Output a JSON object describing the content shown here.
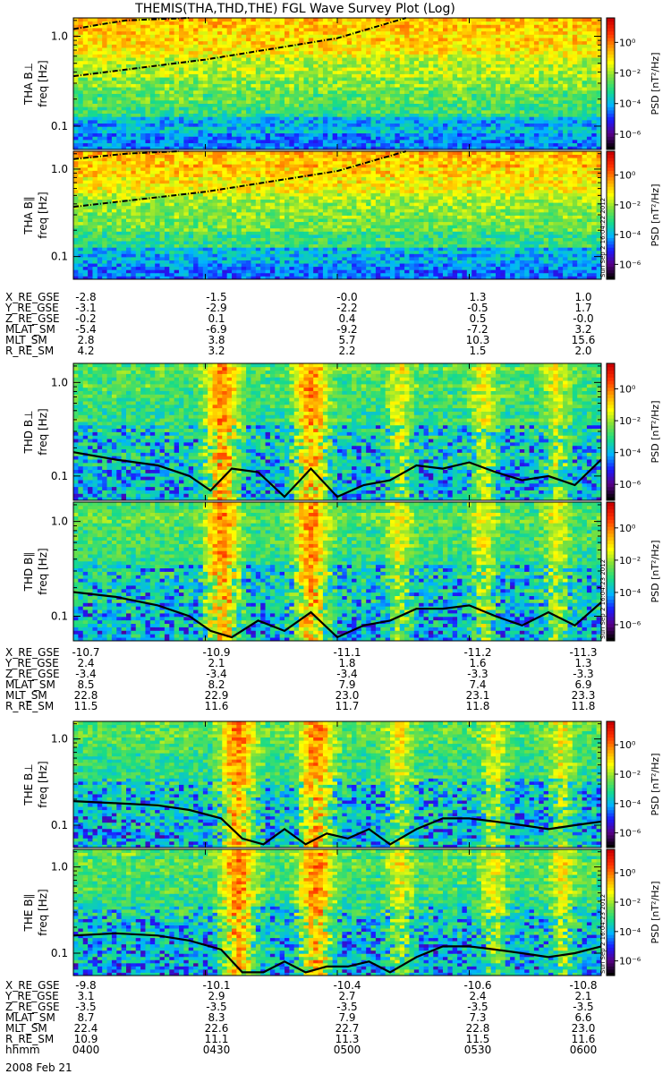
{
  "title": "THEMIS(THA,THD,THE) FGL Wave Survey Plot (Log)",
  "colorbar": {
    "label": "PSD [nT²/Hz]",
    "ticks": [
      "10⁰",
      "10⁻²",
      "10⁻⁴",
      "10⁻⁶"
    ],
    "tick_values": [
      0,
      -2,
      -4,
      -6
    ],
    "range_log": [
      -7,
      1.6
    ],
    "colors": [
      "#000000",
      "#5a0088",
      "#1a1aff",
      "#00b4ff",
      "#18dc88",
      "#7ce03c",
      "#ffff00",
      "#ffa000",
      "#ff3300",
      "#cc0000"
    ]
  },
  "chart_data": [
    {
      "type": "heatmap",
      "panel": "THA B⊥",
      "ylabel": "THA B⊥\nfreq [Hz]",
      "yscale": "log",
      "ylim": [
        0.055,
        1.6
      ],
      "yticks": [
        "1.0",
        "0.1"
      ],
      "overlay_line": {
        "style": "dashed",
        "shape": "rising",
        "x": [
          0.0,
          0.25,
          0.5,
          0.63
        ],
        "y": [
          0.36,
          0.55,
          0.95,
          1.6
        ]
      },
      "overlay_line2": {
        "style": "dashed",
        "shape": "upper-left",
        "x": [
          0.0,
          0.05,
          0.1,
          0.22
        ],
        "y": [
          1.2,
          1.35,
          1.5,
          1.6
        ]
      },
      "dominant_level": "high"
    },
    {
      "type": "heatmap",
      "panel": "THA B∥",
      "ylabel": "THA B∥\nfreq [Hz]",
      "yscale": "log",
      "ylim": [
        0.055,
        1.6
      ],
      "yticks": [
        "1.0",
        "0.1"
      ],
      "overlay_line": {
        "style": "dashed",
        "shape": "rising",
        "x": [
          0.0,
          0.25,
          0.5,
          0.63
        ],
        "y": [
          0.37,
          0.55,
          0.95,
          1.6
        ]
      },
      "overlay_line2": {
        "style": "dashed",
        "shape": "upper-left",
        "x": [
          0.0,
          0.05,
          0.1,
          0.2
        ],
        "y": [
          1.3,
          1.4,
          1.5,
          1.6
        ]
      },
      "stamp": "Sun Sep 2 16:04:22 2012",
      "dominant_level": "high"
    },
    {
      "type": "heatmap",
      "panel": "THD B⊥",
      "ylabel": "THD B⊥\nfreq [Hz]",
      "yscale": "log",
      "ylim": [
        0.055,
        1.6
      ],
      "yticks": [
        "1.0",
        "0.1"
      ],
      "bursts_x": [
        0.28,
        0.45,
        0.62,
        0.78,
        0.92
      ],
      "overlay_line": {
        "style": "solid",
        "shape": "varying",
        "x": [
          0.0,
          0.08,
          0.16,
          0.22,
          0.26,
          0.3,
          0.35,
          0.4,
          0.45,
          0.5,
          0.55,
          0.6,
          0.65,
          0.7,
          0.75,
          0.8,
          0.85,
          0.9,
          0.95,
          1.0
        ],
        "y": [
          0.18,
          0.15,
          0.13,
          0.1,
          0.07,
          0.12,
          0.11,
          0.06,
          0.12,
          0.06,
          0.08,
          0.09,
          0.13,
          0.12,
          0.14,
          0.11,
          0.09,
          0.1,
          0.08,
          0.15
        ]
      },
      "dominant_level": "mid"
    },
    {
      "type": "heatmap",
      "panel": "THD B∥",
      "ylabel": "THD B∥\nfreq [Hz]",
      "yscale": "log",
      "ylim": [
        0.055,
        1.6
      ],
      "yticks": [
        "1.0",
        "0.1"
      ],
      "bursts_x": [
        0.28,
        0.45,
        0.62,
        0.78,
        0.92
      ],
      "overlay_line": {
        "style": "solid",
        "shape": "varying",
        "x": [
          0.0,
          0.08,
          0.16,
          0.22,
          0.26,
          0.3,
          0.35,
          0.4,
          0.45,
          0.5,
          0.55,
          0.6,
          0.65,
          0.7,
          0.75,
          0.8,
          0.85,
          0.9,
          0.95,
          1.0
        ],
        "y": [
          0.18,
          0.16,
          0.13,
          0.1,
          0.07,
          0.06,
          0.09,
          0.07,
          0.11,
          0.06,
          0.08,
          0.09,
          0.12,
          0.12,
          0.13,
          0.1,
          0.08,
          0.11,
          0.08,
          0.14
        ]
      },
      "stamp": "Sun Sep 2 16:04:23 2012",
      "dominant_level": "mid"
    },
    {
      "type": "heatmap",
      "panel": "THE B⊥",
      "ylabel": "THE B⊥\nfreq [Hz]",
      "yscale": "log",
      "ylim": [
        0.055,
        1.6
      ],
      "yticks": [
        "1.0",
        "0.1"
      ],
      "bursts_x": [
        0.31,
        0.46,
        0.62,
        0.8,
        0.93
      ],
      "overlay_line": {
        "style": "solid",
        "shape": "varying",
        "x": [
          0.0,
          0.08,
          0.16,
          0.22,
          0.28,
          0.32,
          0.36,
          0.4,
          0.44,
          0.48,
          0.52,
          0.56,
          0.6,
          0.65,
          0.7,
          0.75,
          0.8,
          0.85,
          0.9,
          0.95,
          1.0
        ],
        "y": [
          0.19,
          0.18,
          0.17,
          0.15,
          0.12,
          0.07,
          0.06,
          0.09,
          0.06,
          0.08,
          0.07,
          0.09,
          0.06,
          0.09,
          0.12,
          0.12,
          0.11,
          0.1,
          0.09,
          0.1,
          0.11
        ]
      },
      "dominant_level": "mid"
    },
    {
      "type": "heatmap",
      "panel": "THE B∥",
      "ylabel": "THE B∥\nfreq [Hz]",
      "yscale": "log",
      "ylim": [
        0.055,
        1.6
      ],
      "yticks": [
        "1.0",
        "0.1"
      ],
      "bursts_x": [
        0.31,
        0.46,
        0.62,
        0.8,
        0.93
      ],
      "overlay_line": {
        "style": "solid",
        "shape": "varying",
        "x": [
          0.0,
          0.08,
          0.16,
          0.22,
          0.28,
          0.32,
          0.36,
          0.4,
          0.44,
          0.48,
          0.52,
          0.56,
          0.6,
          0.65,
          0.7,
          0.75,
          0.8,
          0.85,
          0.9,
          0.95,
          1.0
        ],
        "y": [
          0.16,
          0.17,
          0.16,
          0.14,
          0.11,
          0.06,
          0.06,
          0.08,
          0.06,
          0.07,
          0.07,
          0.08,
          0.06,
          0.09,
          0.12,
          0.12,
          0.11,
          0.1,
          0.09,
          0.1,
          0.12
        ]
      },
      "stamp": "Sun Sep 2 16:04:23 2012",
      "dominant_level": "mid"
    }
  ],
  "ephemeris": [
    {
      "probe": "THA",
      "rows": [
        {
          "label": "X_RE_GSE",
          "values": [
            "-2.8",
            "-1.5",
            "-0.0",
            "1.3",
            "1.0"
          ]
        },
        {
          "label": "Y_RE_GSE",
          "values": [
            "-3.1",
            "-2.9",
            "-2.2",
            "-0.5",
            "1.7"
          ]
        },
        {
          "label": "Z_RE_GSE",
          "values": [
            "-0.2",
            "0.1",
            "0.4",
            "0.5",
            "-0.0"
          ]
        },
        {
          "label": "MLAT_SM",
          "values": [
            "-5.4",
            "-6.9",
            "-9.2",
            "-7.2",
            "3.2"
          ]
        },
        {
          "label": "MLT_SM",
          "values": [
            "2.8",
            "3.8",
            "5.7",
            "10.3",
            "15.6"
          ]
        },
        {
          "label": "R_RE_SM",
          "values": [
            "4.2",
            "3.2",
            "2.2",
            "1.5",
            "2.0"
          ]
        }
      ]
    },
    {
      "probe": "THD",
      "rows": [
        {
          "label": "X_RE_GSE",
          "values": [
            "-10.7",
            "-10.9",
            "-11.1",
            "-11.2",
            "-11.3"
          ]
        },
        {
          "label": "Y_RE_GSE",
          "values": [
            "2.4",
            "2.1",
            "1.8",
            "1.6",
            "1.3"
          ]
        },
        {
          "label": "Z_RE_GSE",
          "values": [
            "-3.4",
            "-3.4",
            "-3.4",
            "-3.3",
            "-3.3"
          ]
        },
        {
          "label": "MLAT_SM",
          "values": [
            "8.5",
            "8.2",
            "7.9",
            "7.4",
            "6.9"
          ]
        },
        {
          "label": "MLT_SM",
          "values": [
            "22.8",
            "22.9",
            "23.0",
            "23.1",
            "23.3"
          ]
        },
        {
          "label": "R_RE_SM",
          "values": [
            "11.5",
            "11.6",
            "11.7",
            "11.8",
            "11.8"
          ]
        }
      ]
    },
    {
      "probe": "THE",
      "rows": [
        {
          "label": "X_RE_GSE",
          "values": [
            "-9.8",
            "-10.1",
            "-10.4",
            "-10.6",
            "-10.8"
          ]
        },
        {
          "label": "Y_RE_GSE",
          "values": [
            "3.1",
            "2.9",
            "2.7",
            "2.4",
            "2.1"
          ]
        },
        {
          "label": "Z_RE_GSE",
          "values": [
            "-3.5",
            "-3.5",
            "-3.5",
            "-3.5",
            "-3.5"
          ]
        },
        {
          "label": "MLAT_SM",
          "values": [
            "8.7",
            "8.3",
            "7.9",
            "7.3",
            "6.6"
          ]
        },
        {
          "label": "MLT_SM",
          "values": [
            "22.4",
            "22.6",
            "22.7",
            "22.8",
            "23.0"
          ]
        },
        {
          "label": "R_RE_SM",
          "values": [
            "10.9",
            "11.1",
            "11.3",
            "11.5",
            "11.6"
          ]
        },
        {
          "label": "hhmm",
          "values": [
            "0400",
            "0430",
            "0500",
            "0530",
            "0600"
          ]
        }
      ]
    }
  ],
  "date_label": "2008 Feb 21"
}
